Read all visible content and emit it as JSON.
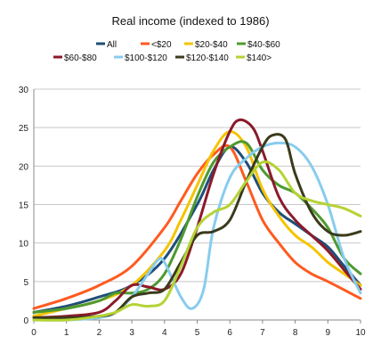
{
  "chart_data": {
    "type": "line",
    "title": "Real income (indexed to 1986)",
    "xlabel": "",
    "ylabel": "",
    "xlim": [
      0,
      10
    ],
    "ylim": [
      0,
      30
    ],
    "xticks": [
      "0",
      "1",
      "2",
      "3",
      "4",
      "5",
      "6",
      "7",
      "8",
      "9",
      "10"
    ],
    "yticks": [
      "0",
      "5",
      "10",
      "15",
      "20",
      "25",
      "30"
    ],
    "grid": "horizontal",
    "legend_position": "top",
    "series": [
      {
        "name": "All",
        "color": "#1f4e79",
        "points": [
          [
            0,
            1
          ],
          [
            1,
            1.8
          ],
          [
            2,
            3
          ],
          [
            3,
            4.5
          ],
          [
            4,
            8
          ],
          [
            5,
            15
          ],
          [
            5.5,
            19.5
          ],
          [
            6,
            22.5
          ],
          [
            6.5,
            20.5
          ],
          [
            7,
            16.5
          ],
          [
            7.5,
            14
          ],
          [
            8,
            12.5
          ],
          [
            8.5,
            11
          ],
          [
            9,
            9.5
          ],
          [
            9.5,
            7
          ],
          [
            10,
            4.5
          ]
        ]
      },
      {
        "name": "<$20",
        "color": "#ff5a1f",
        "points": [
          [
            0,
            1.5
          ],
          [
            1,
            2.8
          ],
          [
            2,
            4.5
          ],
          [
            3,
            7
          ],
          [
            4,
            12
          ],
          [
            4.5,
            15.5
          ],
          [
            5,
            19
          ],
          [
            5.5,
            21.5
          ],
          [
            6,
            22.5
          ],
          [
            6.5,
            18
          ],
          [
            7,
            13
          ],
          [
            7.5,
            10
          ],
          [
            8,
            7.5
          ],
          [
            8.5,
            6
          ],
          [
            9,
            5
          ],
          [
            10,
            2.8
          ]
        ]
      },
      {
        "name": "$20-$40",
        "color": "#f5c400",
        "points": [
          [
            0,
            0.5
          ],
          [
            1,
            1.5
          ],
          [
            2,
            2.5
          ],
          [
            3,
            4.5
          ],
          [
            4,
            9
          ],
          [
            4.5,
            13
          ],
          [
            5,
            17.5
          ],
          [
            5.5,
            22
          ],
          [
            6,
            24.5
          ],
          [
            6.5,
            22.5
          ],
          [
            7,
            17
          ],
          [
            7.5,
            13.5
          ],
          [
            8,
            11
          ],
          [
            8.5,
            9.5
          ],
          [
            9,
            7.5
          ],
          [
            9.5,
            6
          ],
          [
            10,
            4.5
          ]
        ]
      },
      {
        "name": "$40-$60",
        "color": "#4e9a2f",
        "points": [
          [
            0,
            1
          ],
          [
            1,
            1.5
          ],
          [
            2,
            2.5
          ],
          [
            2.5,
            3.5
          ],
          [
            3,
            3.5
          ],
          [
            3.5,
            4
          ],
          [
            4,
            6
          ],
          [
            4.5,
            10.5
          ],
          [
            5,
            16
          ],
          [
            5.5,
            20.5
          ],
          [
            6,
            22.5
          ],
          [
            6.5,
            23
          ],
          [
            7,
            19.5
          ],
          [
            7.5,
            17.5
          ],
          [
            8,
            16.5
          ],
          [
            8.5,
            14.5
          ],
          [
            9,
            12
          ],
          [
            9.5,
            8
          ],
          [
            10,
            6
          ]
        ]
      },
      {
        "name": "$60-$80",
        "color": "#8b1a2b",
        "points": [
          [
            0,
            0.3
          ],
          [
            1,
            0.5
          ],
          [
            2,
            1
          ],
          [
            2.5,
            2.5
          ],
          [
            3,
            4.5
          ],
          [
            3.5,
            4.3
          ],
          [
            4,
            4
          ],
          [
            4.5,
            6
          ],
          [
            5,
            12
          ],
          [
            5.5,
            19
          ],
          [
            6,
            24.5
          ],
          [
            6.3,
            26
          ],
          [
            6.7,
            25
          ],
          [
            7,
            22
          ],
          [
            7.5,
            16
          ],
          [
            8,
            13
          ],
          [
            8.5,
            11
          ],
          [
            9,
            9
          ],
          [
            9.5,
            6.5
          ],
          [
            10,
            4
          ]
        ]
      },
      {
        "name": "$100-$120",
        "color": "#88ccee",
        "points": [
          [
            0,
            0
          ],
          [
            1,
            0
          ],
          [
            2,
            0.3
          ],
          [
            2.5,
            1
          ],
          [
            3,
            3
          ],
          [
            3.5,
            6
          ],
          [
            3.8,
            7.8
          ],
          [
            4,
            7.5
          ],
          [
            4.5,
            3
          ],
          [
            4.85,
            1.5
          ],
          [
            5.2,
            4
          ],
          [
            5.5,
            12
          ],
          [
            6,
            18.5
          ],
          [
            6.5,
            21
          ],
          [
            7,
            22.5
          ],
          [
            7.5,
            23
          ],
          [
            8,
            22.5
          ],
          [
            8.5,
            20
          ],
          [
            9,
            15
          ],
          [
            9.5,
            8
          ],
          [
            10,
            3.5
          ]
        ]
      },
      {
        "name": "$120-$140",
        "color": "#3b3a1c",
        "points": [
          [
            0,
            0.3
          ],
          [
            1,
            0.3
          ],
          [
            2,
            0.5
          ],
          [
            2.5,
            1
          ],
          [
            3,
            3
          ],
          [
            3.5,
            3.5
          ],
          [
            4,
            4
          ],
          [
            4.5,
            7.5
          ],
          [
            5,
            11
          ],
          [
            5.5,
            11.5
          ],
          [
            6,
            13
          ],
          [
            6.5,
            18
          ],
          [
            7,
            22.5
          ],
          [
            7.3,
            24
          ],
          [
            7.7,
            23.5
          ],
          [
            8,
            19
          ],
          [
            8.5,
            14
          ],
          [
            9,
            11.5
          ],
          [
            9.5,
            11
          ],
          [
            10,
            11.5
          ]
        ]
      },
      {
        "name": "$140>",
        "color": "#b5d334",
        "points": [
          [
            0,
            0
          ],
          [
            1,
            0
          ],
          [
            2,
            0.5
          ],
          [
            2.5,
            1
          ],
          [
            3,
            2
          ],
          [
            3.5,
            1.8
          ],
          [
            4,
            2.5
          ],
          [
            4.5,
            7
          ],
          [
            5,
            12
          ],
          [
            5.5,
            14
          ],
          [
            6,
            15
          ],
          [
            6.5,
            18
          ],
          [
            7,
            20.5
          ],
          [
            7.5,
            19.5
          ],
          [
            8,
            16.5
          ],
          [
            8.5,
            15.5
          ],
          [
            9,
            15
          ],
          [
            9.5,
            14.5
          ],
          [
            10,
            13.5
          ]
        ]
      }
    ]
  }
}
